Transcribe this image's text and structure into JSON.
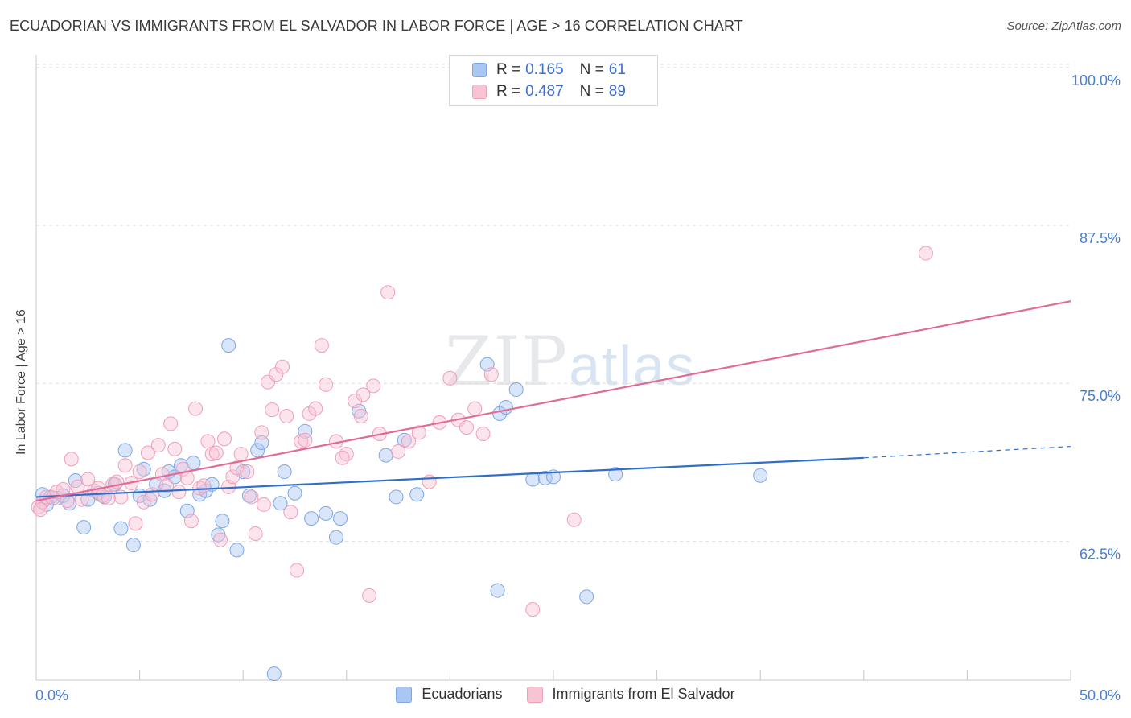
{
  "header": {
    "title": "ECUADORIAN VS IMMIGRANTS FROM EL SALVADOR IN LABOR FORCE | AGE > 16 CORRELATION CHART",
    "source": "Source: ZipAtlas.com"
  },
  "watermark": {
    "zip": "ZIP",
    "atlas": "atlas"
  },
  "legend": {
    "rows": [
      {
        "r_label": "R =",
        "r_value": "0.165",
        "n_label": "N =",
        "n_value": "61",
        "color": "#aac6f2",
        "border": "#7da7e6"
      },
      {
        "r_label": "R =",
        "r_value": "0.487",
        "n_label": "N =",
        "n_value": "89",
        "color": "#f8c4d4",
        "border": "#ef9fb8"
      }
    ]
  },
  "chart_data": {
    "type": "scatter",
    "title": "ECUADORIAN VS IMMIGRANTS FROM EL SALVADOR IN LABOR FORCE | AGE > 16 CORRELATION CHART",
    "ylabel": "In Labor Force | Age > 16",
    "xlabel": "",
    "xlim": [
      0,
      50
    ],
    "ylim": [
      51.5,
      100.5
    ],
    "x_tick_labels": [
      "0.0%",
      "50.0%"
    ],
    "y_ticks": [
      62.5,
      75.0,
      87.5,
      100.0
    ],
    "y_tick_labels": [
      "62.5%",
      "75.0%",
      "87.5%",
      "100.0%"
    ],
    "series": [
      {
        "name": "Ecuadorians",
        "color": "#7da7e6",
        "fill": "#aac6f2",
        "line_color": "#2f6fcc",
        "trend": {
          "x0": 0,
          "y0": 66.0,
          "x1": 40,
          "y1": 69.1,
          "dash_to_x": 50,
          "dash_to_y": 70.0
        },
        "points": [
          [
            0.3,
            66.2
          ],
          [
            0.7,
            66.0
          ],
          [
            1.0,
            65.9
          ],
          [
            1.3,
            66.1
          ],
          [
            1.6,
            65.5
          ],
          [
            1.9,
            67.3
          ],
          [
            2.3,
            63.6
          ],
          [
            2.5,
            65.8
          ],
          [
            3.0,
            66.3
          ],
          [
            3.3,
            66.0
          ],
          [
            3.8,
            67.0
          ],
          [
            4.1,
            63.5
          ],
          [
            4.3,
            69.7
          ],
          [
            4.7,
            62.2
          ],
          [
            5.0,
            66.1
          ],
          [
            5.2,
            68.2
          ],
          [
            5.5,
            65.8
          ],
          [
            5.8,
            67.0
          ],
          [
            6.2,
            66.5
          ],
          [
            6.4,
            68.0
          ],
          [
            6.7,
            67.6
          ],
          [
            7.0,
            68.5
          ],
          [
            7.3,
            64.9
          ],
          [
            7.6,
            68.7
          ],
          [
            7.9,
            66.2
          ],
          [
            8.2,
            66.5
          ],
          [
            8.5,
            67.0
          ],
          [
            8.8,
            63.0
          ],
          [
            9.0,
            64.1
          ],
          [
            9.3,
            78.0
          ],
          [
            9.7,
            61.8
          ],
          [
            10.0,
            68.0
          ],
          [
            10.3,
            66.1
          ],
          [
            10.7,
            69.7
          ],
          [
            10.9,
            70.3
          ],
          [
            11.5,
            52.0
          ],
          [
            11.8,
            65.5
          ],
          [
            12.0,
            68.0
          ],
          [
            12.5,
            66.3
          ],
          [
            13.0,
            71.2
          ],
          [
            13.3,
            64.3
          ],
          [
            14.0,
            64.7
          ],
          [
            14.5,
            62.8
          ],
          [
            14.7,
            64.3
          ],
          [
            15.6,
            72.8
          ],
          [
            16.9,
            69.3
          ],
          [
            17.4,
            66.0
          ],
          [
            17.8,
            70.5
          ],
          [
            18.4,
            66.2
          ],
          [
            21.8,
            76.5
          ],
          [
            22.3,
            58.6
          ],
          [
            22.4,
            72.6
          ],
          [
            22.7,
            73.1
          ],
          [
            23.2,
            74.5
          ],
          [
            24.0,
            67.4
          ],
          [
            24.6,
            67.5
          ],
          [
            25.0,
            67.6
          ],
          [
            26.6,
            58.1
          ],
          [
            28.0,
            67.8
          ],
          [
            35.0,
            67.7
          ],
          [
            0.5,
            65.4
          ]
        ]
      },
      {
        "name": "Immigrants from El Salvador",
        "color": "#ef9fb8",
        "fill": "#f8c4d4",
        "line_color": "#e06c95",
        "trend": {
          "x0": 0,
          "y0": 65.7,
          "x1": 50,
          "y1": 81.5
        },
        "points": [
          [
            0.1,
            65.2
          ],
          [
            0.3,
            65.6
          ],
          [
            0.5,
            66.0
          ],
          [
            0.8,
            65.9
          ],
          [
            1.0,
            66.4
          ],
          [
            1.3,
            66.6
          ],
          [
            1.5,
            65.7
          ],
          [
            1.7,
            69.0
          ],
          [
            2.0,
            66.8
          ],
          [
            2.2,
            65.8
          ],
          [
            2.5,
            67.4
          ],
          [
            2.8,
            66.5
          ],
          [
            3.0,
            66.7
          ],
          [
            3.2,
            66.1
          ],
          [
            3.5,
            65.9
          ],
          [
            3.7,
            67.0
          ],
          [
            3.9,
            67.2
          ],
          [
            4.1,
            66.0
          ],
          [
            4.3,
            68.5
          ],
          [
            4.6,
            67.1
          ],
          [
            4.8,
            63.9
          ],
          [
            5.0,
            68.0
          ],
          [
            5.2,
            65.6
          ],
          [
            5.4,
            69.5
          ],
          [
            5.6,
            66.2
          ],
          [
            5.9,
            70.1
          ],
          [
            6.1,
            67.8
          ],
          [
            6.3,
            66.9
          ],
          [
            6.5,
            71.8
          ],
          [
            6.7,
            69.8
          ],
          [
            6.9,
            66.4
          ],
          [
            7.1,
            68.2
          ],
          [
            7.3,
            67.5
          ],
          [
            7.5,
            64.1
          ],
          [
            7.7,
            73.0
          ],
          [
            7.9,
            66.7
          ],
          [
            8.1,
            66.9
          ],
          [
            8.3,
            70.4
          ],
          [
            8.5,
            69.4
          ],
          [
            8.7,
            69.5
          ],
          [
            8.9,
            62.6
          ],
          [
            9.1,
            70.6
          ],
          [
            9.3,
            66.8
          ],
          [
            9.5,
            67.6
          ],
          [
            9.7,
            68.3
          ],
          [
            9.9,
            69.4
          ],
          [
            10.2,
            68.0
          ],
          [
            10.4,
            66.0
          ],
          [
            10.6,
            63.1
          ],
          [
            10.9,
            71.1
          ],
          [
            11.2,
            75.1
          ],
          [
            11.4,
            72.9
          ],
          [
            11.6,
            75.7
          ],
          [
            11.9,
            76.3
          ],
          [
            12.1,
            72.4
          ],
          [
            12.3,
            64.8
          ],
          [
            12.6,
            60.2
          ],
          [
            12.8,
            70.4
          ],
          [
            13.0,
            70.5
          ],
          [
            13.2,
            72.6
          ],
          [
            13.5,
            73.0
          ],
          [
            13.8,
            78.0
          ],
          [
            14.0,
            74.9
          ],
          [
            14.5,
            70.4
          ],
          [
            15.0,
            69.4
          ],
          [
            15.4,
            73.6
          ],
          [
            15.7,
            72.4
          ],
          [
            16.1,
            58.2
          ],
          [
            16.3,
            74.8
          ],
          [
            16.6,
            71.0
          ],
          [
            17.0,
            82.2
          ],
          [
            17.5,
            69.6
          ],
          [
            18.0,
            70.4
          ],
          [
            18.5,
            71.1
          ],
          [
            19.0,
            67.2
          ],
          [
            19.5,
            71.9
          ],
          [
            20.0,
            75.4
          ],
          [
            20.4,
            72.1
          ],
          [
            20.8,
            71.5
          ],
          [
            21.2,
            73.0
          ],
          [
            21.6,
            71.0
          ],
          [
            22.0,
            75.7
          ],
          [
            24.0,
            57.1
          ],
          [
            26.0,
            64.2
          ],
          [
            43.0,
            85.3
          ],
          [
            0.2,
            65.0
          ],
          [
            11.0,
            65.4
          ],
          [
            15.8,
            74.1
          ],
          [
            14.8,
            69.1
          ]
        ]
      }
    ]
  }
}
